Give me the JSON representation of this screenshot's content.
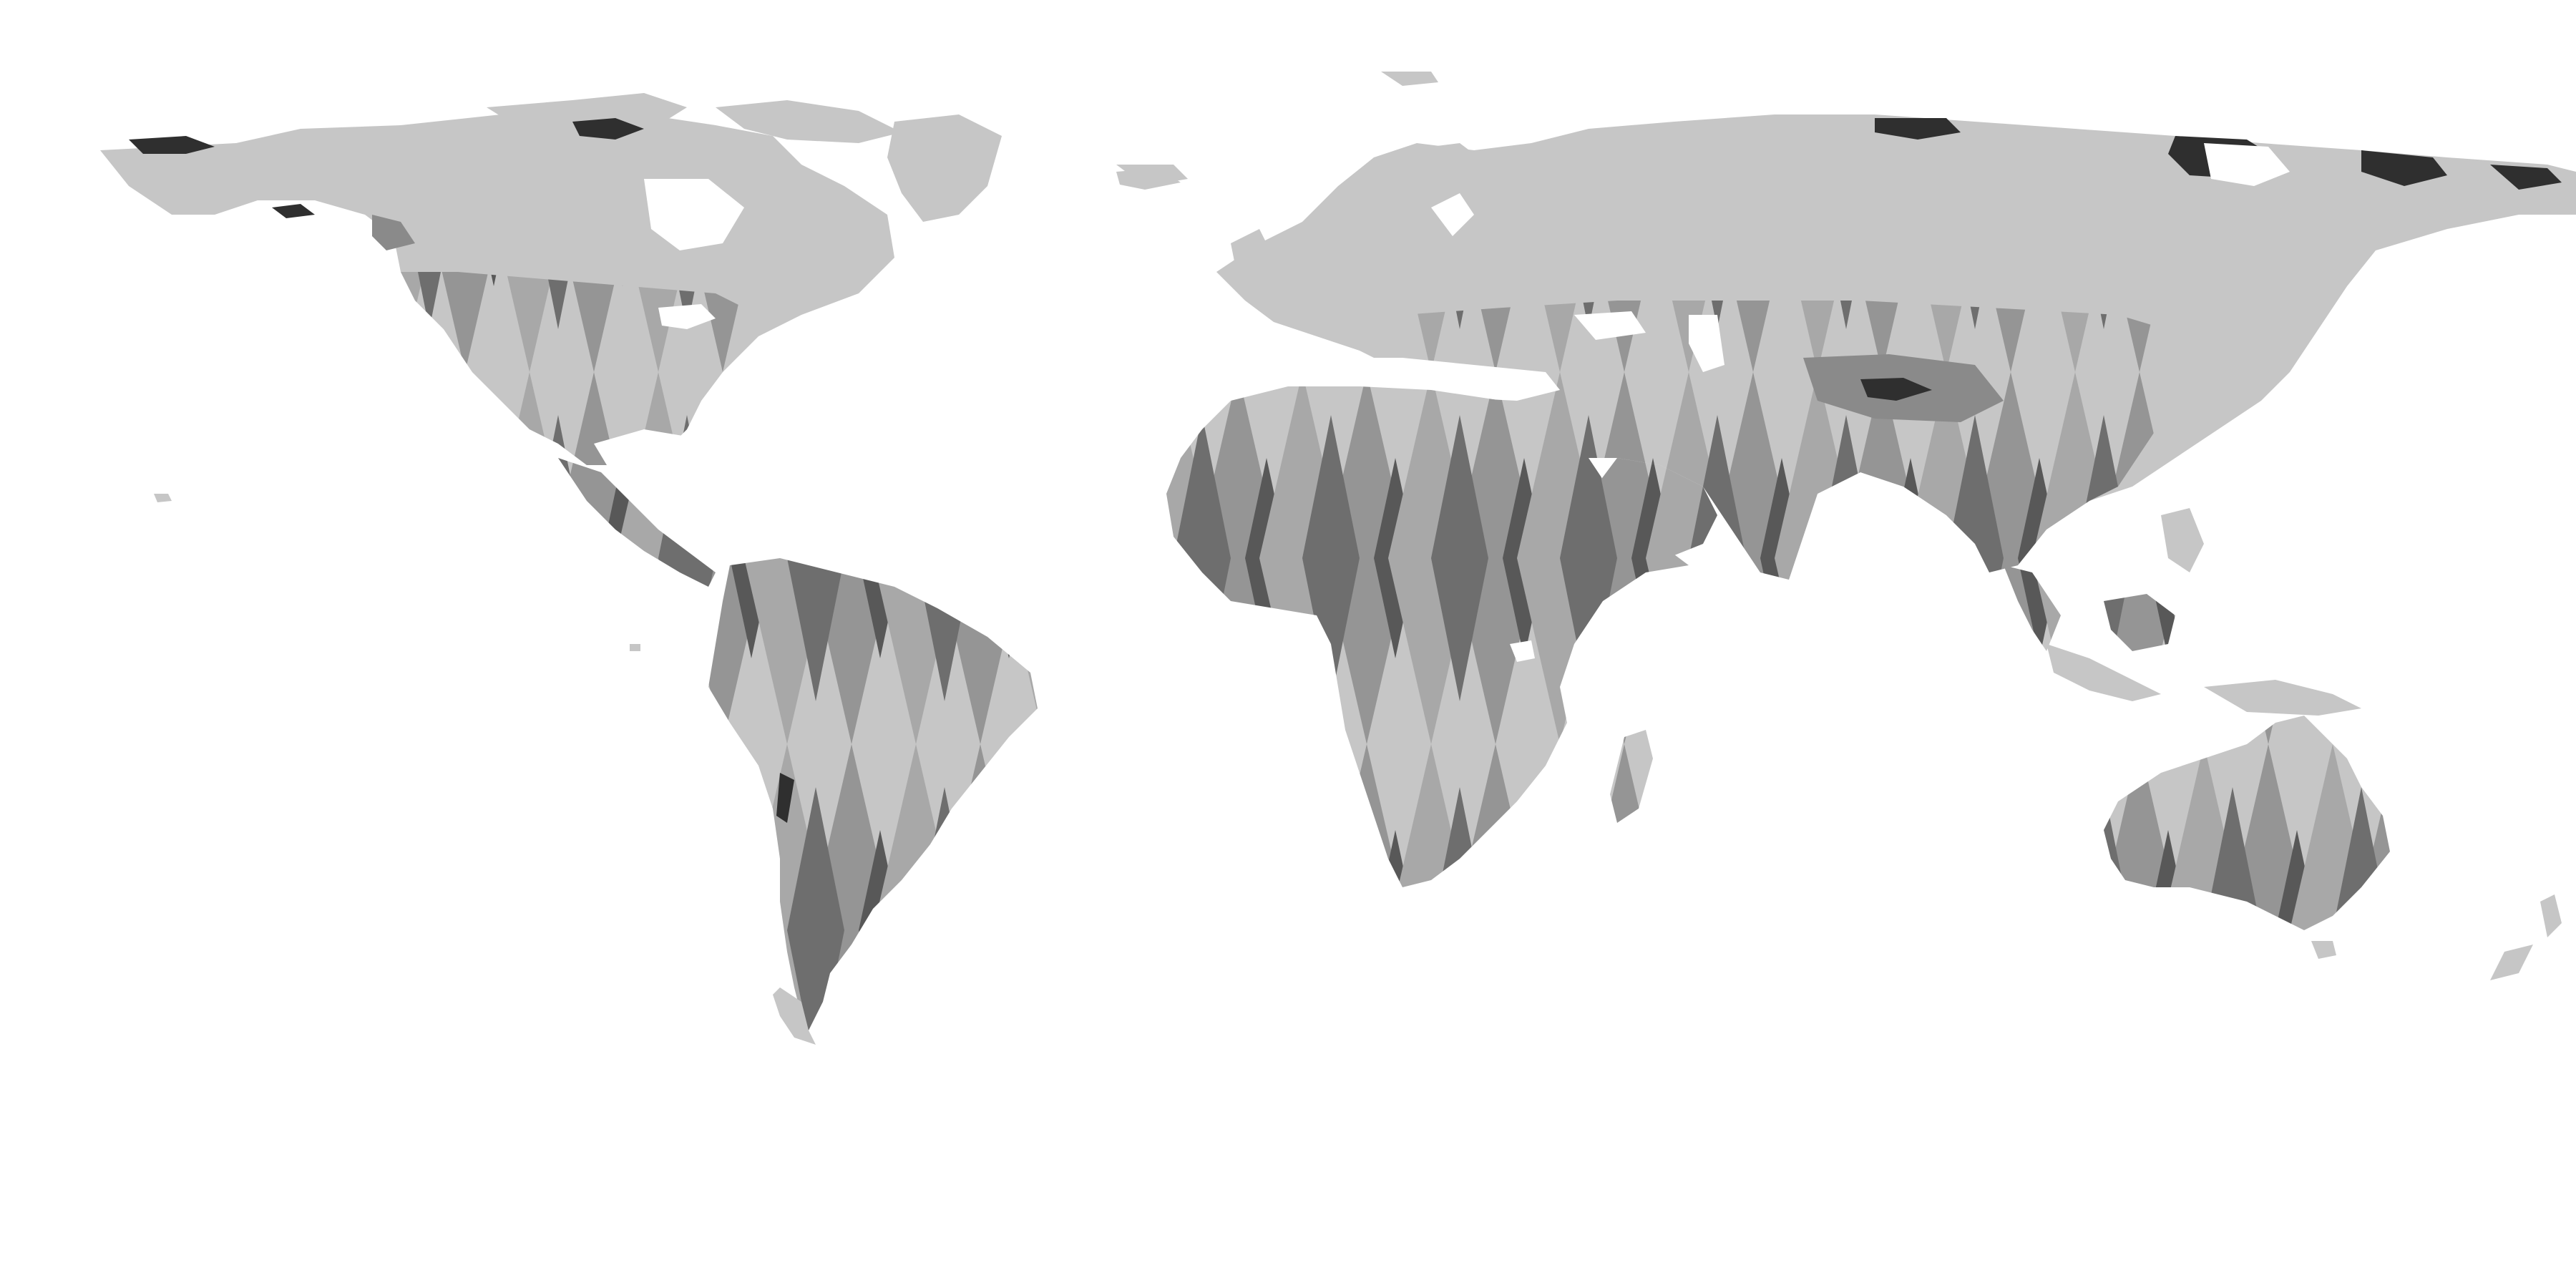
{
  "map": {
    "projection": "equirectangular",
    "style": "grayscale",
    "colors": {
      "background": "#ffffff",
      "land_base": "#c6c6c6",
      "swath_light": "#a9a9a9",
      "swath_mid": "#7d7d7d",
      "swath_dark": "#4a4a4a",
      "ice_dark": "#2f2f2f"
    }
  }
}
